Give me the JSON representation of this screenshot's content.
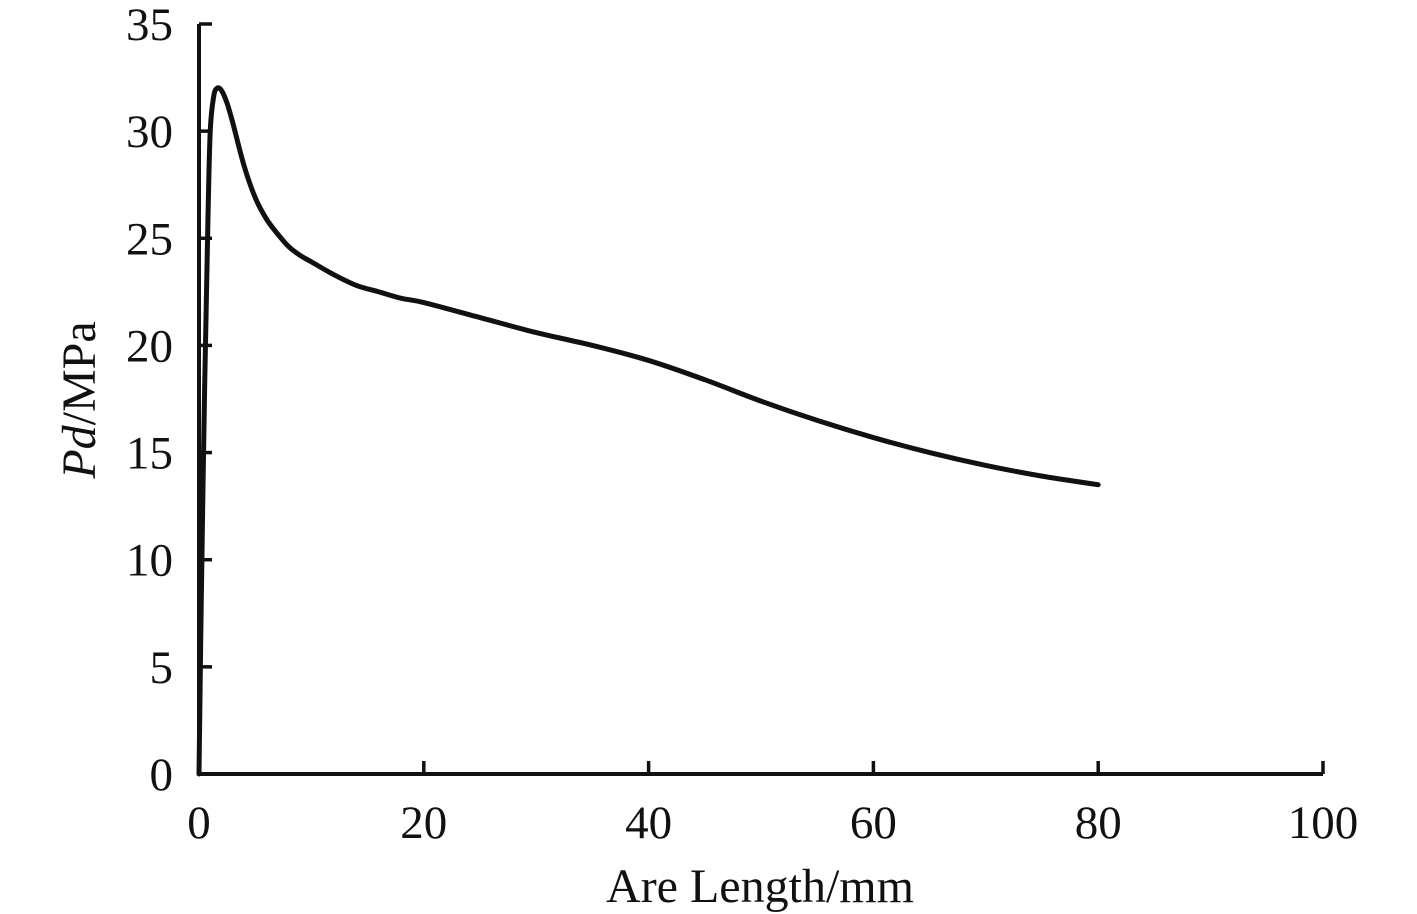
{
  "chart_data": {
    "type": "line",
    "title": "",
    "xlabel": "Are Length/mm",
    "ylabel_italic": "Pd",
    "ylabel_rest": "/MPa",
    "xlim": [
      0,
      100
    ],
    "ylim": [
      0,
      35
    ],
    "xticks": [
      0,
      20,
      40,
      60,
      80,
      100
    ],
    "yticks": [
      0,
      5,
      10,
      15,
      20,
      25,
      30,
      35
    ],
    "grid": false,
    "legend": "none",
    "line_color": "#111111",
    "series": [
      {
        "x": [
          0,
          0.2,
          0.5,
          0.8,
          1.0,
          1.3,
          1.6,
          2.0,
          2.5,
          3.0,
          4.0,
          5.0,
          6.0,
          7.0,
          8.0,
          9.0,
          10.0,
          12.0,
          14.0,
          16.0,
          18.0,
          20.0,
          25.0,
          30.0,
          35.0,
          40.0,
          45.0,
          50.0,
          55.0,
          60.0,
          65.0,
          70.0,
          75.0,
          80.0
        ],
        "y": [
          0,
          8,
          18,
          26,
          30,
          31.6,
          32.0,
          31.9,
          31.3,
          30.4,
          28.4,
          26.9,
          25.9,
          25.2,
          24.6,
          24.2,
          23.9,
          23.3,
          22.8,
          22.5,
          22.2,
          22.0,
          21.3,
          20.6,
          20.0,
          19.3,
          18.4,
          17.4,
          16.5,
          15.7,
          15.0,
          14.4,
          13.9,
          13.5
        ]
      }
    ]
  }
}
